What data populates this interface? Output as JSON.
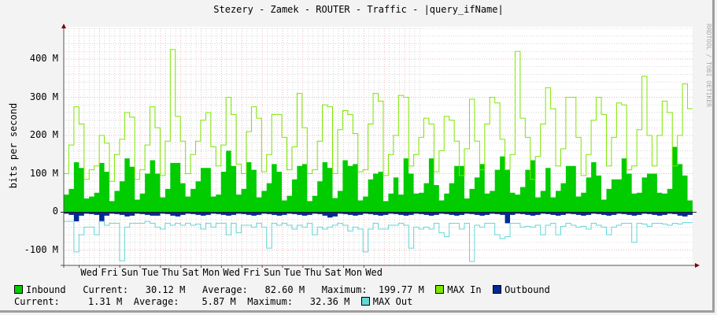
{
  "chart_data": {
    "type": "area",
    "title": "Stezery - Zamek - ROUTER - Traffic - |query_ifName|",
    "ylabel": "bits per second",
    "xlabel": "",
    "watermark": "RRDTOOL / TOBI OETIKER",
    "ylim": [
      -130000000,
      480000000
    ],
    "y_ticks": [
      {
        "value": 400,
        "label": "400 M"
      },
      {
        "value": 300,
        "label": "300 M"
      },
      {
        "value": 200,
        "label": "200 M"
      },
      {
        "value": 100,
        "label": "100 M"
      },
      {
        "value": 0,
        "label": "0"
      },
      {
        "value": -100,
        "label": "-100 M"
      }
    ],
    "x_ticks": [
      "Wed",
      "Fri",
      "Sun",
      "Tue",
      "Thu",
      "Sat",
      "Mon",
      "Wed",
      "Fri",
      "Sun",
      "Tue",
      "Thu",
      "Sat",
      "Mon",
      "Wed"
    ],
    "grid": true,
    "legend_position": "bottom",
    "samples_per_day": 4,
    "series": [
      {
        "name": "Inbound",
        "color": "#00cc00",
        "style": "area",
        "values_mbps": [
          45,
          60,
          130,
          115,
          35,
          40,
          50,
          128,
          105,
          28,
          55,
          80,
          140,
          118,
          32,
          48,
          100,
          135,
          100,
          38,
          60,
          128,
          128,
          75,
          40,
          60,
          80,
          115,
          115,
          40,
          45,
          105,
          160,
          120,
          45,
          60,
          130,
          110,
          38,
          55,
          75,
          125,
          105,
          30,
          42,
          85,
          120,
          125,
          28,
          42,
          80,
          130,
          115,
          36,
          55,
          135,
          120,
          125,
          30,
          40,
          85,
          100,
          105,
          28,
          48,
          90,
          45,
          140,
          100,
          48,
          50,
          75,
          140,
          70,
          30,
          48,
          75,
          120,
          120,
          35,
          60,
          90,
          125,
          48,
          55,
          110,
          145,
          110,
          50,
          45,
          65,
          110,
          135,
          38,
          55,
          115,
          38,
          55,
          75,
          120,
          120,
          40,
          50,
          90,
          130,
          95,
          32,
          60,
          85,
          85,
          140,
          100,
          48,
          50,
          90,
          100,
          100,
          50,
          48,
          60,
          170,
          125,
          95,
          30
        ]
      },
      {
        "name": "MAX In",
        "color": "#7ee600",
        "style": "line",
        "values_mbps": [
          100,
          175,
          275,
          230,
          85,
          110,
          120,
          200,
          180,
          80,
          150,
          190,
          260,
          248,
          85,
          110,
          175,
          275,
          220,
          95,
          185,
          425,
          250,
          185,
          100,
          150,
          185,
          240,
          260,
          170,
          120,
          175,
          300,
          255,
          125,
          100,
          210,
          275,
          245,
          105,
          150,
          255,
          255,
          195,
          110,
          170,
          310,
          220,
          100,
          110,
          185,
          280,
          275,
          100,
          215,
          265,
          255,
          205,
          105,
          110,
          230,
          310,
          290,
          95,
          150,
          200,
          305,
          300,
          120,
          150,
          195,
          245,
          230,
          105,
          160,
          250,
          240,
          185,
          95,
          165,
          295,
          185,
          110,
          230,
          300,
          285,
          190,
          110,
          150,
          420,
          245,
          195,
          85,
          145,
          230,
          325,
          270,
          120,
          165,
          300,
          300,
          195,
          95,
          150,
          240,
          300,
          255,
          120,
          195,
          285,
          280,
          110,
          120,
          215,
          355,
          200,
          120,
          200,
          290,
          260,
          120,
          200,
          335,
          270
        ]
      },
      {
        "name": "Outbound",
        "color": "#002a97",
        "style": "area",
        "values_mbps": [
          -5,
          -8,
          -25,
          -10,
          -5,
          -6,
          -8,
          -25,
          -10,
          -5,
          -6,
          -8,
          -12,
          -10,
          -5,
          -6,
          -8,
          -10,
          -10,
          -5,
          -6,
          -10,
          -12,
          -8,
          -5,
          -6,
          -8,
          -10,
          -8,
          -5,
          -6,
          -8,
          -10,
          -8,
          -5,
          -6,
          -8,
          -10,
          -8,
          -5,
          -6,
          -8,
          -10,
          -8,
          -5,
          -6,
          -8,
          -10,
          -8,
          -5,
          -6,
          -10,
          -15,
          -12,
          -5,
          -6,
          -8,
          -10,
          -8,
          -5,
          -6,
          -8,
          -10,
          -8,
          -5,
          -6,
          -8,
          -10,
          -8,
          -5,
          -6,
          -8,
          -10,
          -8,
          -5,
          -6,
          -8,
          -10,
          -8,
          -5,
          -6,
          -8,
          -10,
          -8,
          -5,
          -6,
          -8,
          -30,
          -8,
          -5,
          -6,
          -8,
          -10,
          -8,
          -5,
          -6,
          -8,
          -10,
          -8,
          -5,
          -6,
          -8,
          -10,
          -8,
          -5,
          -6,
          -8,
          -10,
          -8,
          -5,
          -6,
          -8,
          -10,
          -8,
          -5,
          -6,
          -8,
          -10,
          -8,
          -5,
          -6,
          -10,
          -12,
          -8
        ]
      },
      {
        "name": "MAX Out",
        "color": "#64d6d6",
        "style": "line",
        "values_mbps": [
          -25,
          -25,
          -105,
          -60,
          -40,
          -40,
          -60,
          -25,
          -35,
          -30,
          -30,
          -128,
          -40,
          -30,
          -30,
          -30,
          -25,
          -30,
          -40,
          -45,
          -30,
          -35,
          -30,
          -35,
          -30,
          -35,
          -32,
          -45,
          -30,
          -40,
          -30,
          -30,
          -60,
          -30,
          -55,
          -35,
          -35,
          -40,
          -30,
          -40,
          -95,
          -30,
          -35,
          -30,
          -35,
          -45,
          -35,
          -40,
          -30,
          -60,
          -40,
          -45,
          -40,
          -35,
          -30,
          -35,
          -50,
          -40,
          -45,
          -105,
          -45,
          -30,
          -45,
          -45,
          -35,
          -35,
          -30,
          -35,
          -95,
          -40,
          -45,
          -40,
          -45,
          -30,
          -55,
          -65,
          -30,
          -30,
          -45,
          -30,
          -130,
          -35,
          -40,
          -30,
          -30,
          -60,
          -70,
          -65,
          -30,
          -30,
          -40,
          -38,
          -40,
          -35,
          -60,
          -35,
          -30,
          -60,
          -38,
          -30,
          -35,
          -40,
          -38,
          -45,
          -30,
          -35,
          -40,
          -60,
          -40,
          -35,
          -30,
          -30,
          -80,
          -30,
          -32,
          -38,
          -30,
          -30,
          -32,
          -35,
          -30,
          -32,
          -28,
          -28
        ]
      }
    ]
  },
  "legend": {
    "row1": {
      "inbound_label": "Inbound",
      "current_label": "Current:",
      "current_value": "30.12 M",
      "average_label": "Average:",
      "average_value": "82.60 M",
      "maximum_label": "Maximum:",
      "maximum_value": "199.77 M",
      "max_in_label": "MAX In",
      "outbound_label": "Outbound"
    },
    "row2": {
      "current_label": "Current:",
      "current_value": "1.31 M",
      "average_label": "Average:",
      "average_value": "5.87 M",
      "maximum_label": "Maximum:",
      "maximum_value": "32.36 M",
      "max_out_label": "MAX Out"
    },
    "colors": {
      "inbound": "#00cc00",
      "max_in": "#7ee600",
      "outbound": "#002a97",
      "max_out": "#64d6d6"
    }
  }
}
